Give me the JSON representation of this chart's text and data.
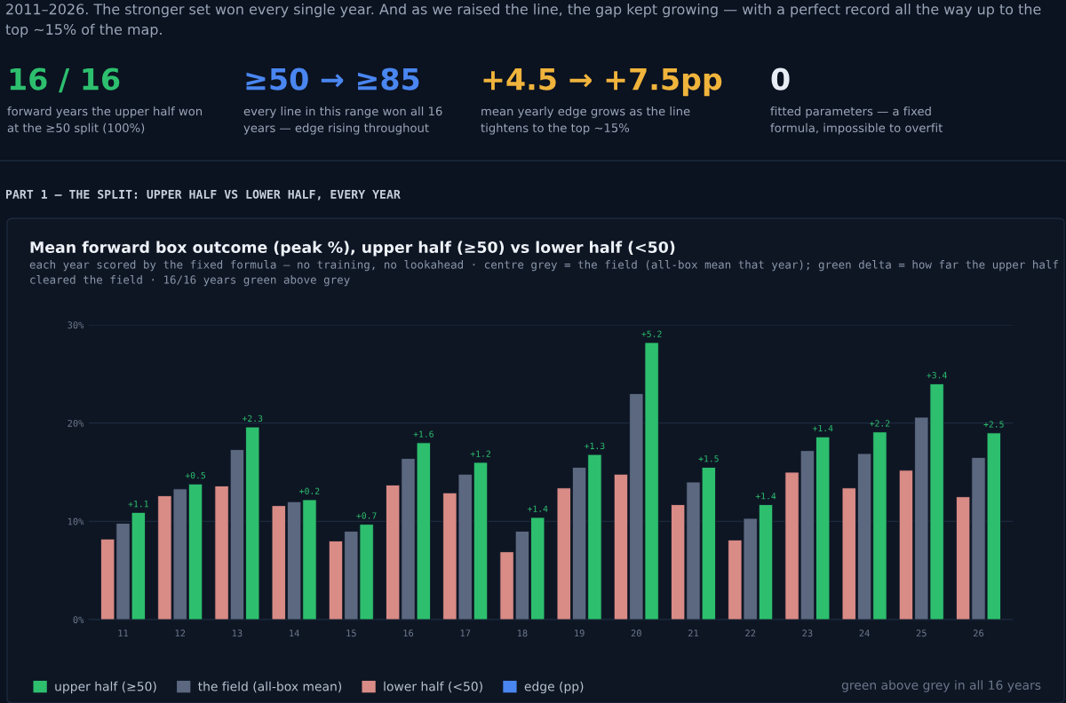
{
  "chart_data": [
    {
      "type": "other",
      "subtitle": "2011–2026. The stronger set won every single year. And as we raised the line, the gap kept growing — with a perfect record all the way up to the top ~15% of the map.",
      "annotations": [
        "16 / 16",
        "forward years the upper half won at the ≥50 split (100%)",
        "≥50 → ≥85",
        "every line in this range won all 16 years — edge rising throughout",
        "+4.5 → +7.5pp",
        "mean yearly edge grows as the line tightens to the top ~15%",
        "0",
        "fitted parameters — a fixed formula, impossible to overfit",
        "PART 1 — THE SPLIT: UPPER HALF VS LOWER HALF, EVERY YEAR"
      ],
      "colors": [
        "#2dbf6e",
        "#4a86f0",
        "#f0b43c",
        "#e8edf5"
      ]
    },
    {
      "type": "bar",
      "title": "Mean forward box outcome (peak %), upper half (≥50) vs lower half (<50)",
      "subtitle": "each year scored by the fixed formula — no training, no lookahead · centre grey = the field (all-box mean that year); green delta = how far the upper half cleared the field · 16/16 years green above grey",
      "categories": [
        "11",
        "12",
        "13",
        "14",
        "15",
        "16",
        "17",
        "18",
        "19",
        "20",
        "21",
        "22",
        "23",
        "24",
        "25",
        "26"
      ],
      "series": [
        {
          "name": "upper half (≥50)",
          "color": "#2dbf6e",
          "values": [
            10.9,
            13.8,
            19.6,
            12.2,
            9.7,
            18.0,
            16.0,
            10.4,
            16.8,
            28.2,
            15.5,
            11.7,
            18.6,
            19.1,
            24.0,
            19.0
          ]
        },
        {
          "name": "the field (all-box mean)",
          "color": "#5b6880",
          "values": [
            9.8,
            13.3,
            17.3,
            12.0,
            9.0,
            16.4,
            14.8,
            9.0,
            15.5,
            23.0,
            14.0,
            10.3,
            17.2,
            16.9,
            20.6,
            16.5
          ]
        },
        {
          "name": "lower half (<50)",
          "color": "#d98b86",
          "values": [
            8.2,
            12.6,
            13.6,
            11.6,
            8.0,
            13.7,
            12.9,
            6.9,
            13.4,
            14.8,
            11.7,
            8.1,
            15.0,
            13.4,
            15.2,
            12.5
          ]
        },
        {
          "name": "edge (pp)",
          "color": "#4a86f0",
          "values": [
            null,
            null,
            null,
            null,
            null,
            null,
            null,
            null,
            null,
            null,
            null,
            null,
            null,
            null,
            null,
            null
          ]
        }
      ],
      "ylim": [
        0,
        30
      ],
      "yticks": [
        {
          "value": 0,
          "label": "0%"
        },
        {
          "value": 10,
          "label": "10%"
        },
        {
          "value": 20,
          "label": "20%"
        },
        {
          "value": 30,
          "label": "30%"
        }
      ],
      "grid": "y",
      "legend": "bottom",
      "annotations": [
        "+1.1",
        "+0.5",
        "+2.3",
        "+0.2",
        "+0.7",
        "+1.6",
        "+1.2",
        "+1.4",
        "+1.3",
        "+5.2",
        "+1.5",
        "+1.4",
        "+1.4",
        "+2.2",
        "+3.4",
        "+2.5",
        "green above grey in all 16 years"
      ]
    }
  ]
}
